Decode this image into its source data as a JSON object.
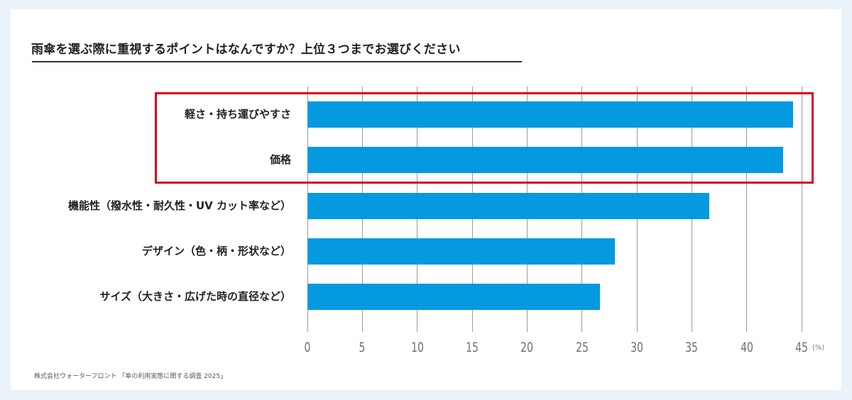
{
  "colors": {
    "background": "#eaf3fa",
    "card": "#ffffff",
    "bar": "#0599e0",
    "highlight": "#d7001e",
    "grid": "#9a9aa2",
    "axis_text": "#6e6e78"
  },
  "title": "雨傘を選ぶ際に重視するポイントはなんですか？上位３つまでお選びください",
  "source": "株式会社ウォーターフロント 「傘の利用実態に関する調査 2025」",
  "axis": {
    "unit": "(%)",
    "ticks": [
      "0",
      "5",
      "10",
      "15",
      "20",
      "25",
      "30",
      "35",
      "40",
      "45"
    ]
  },
  "highlight": {
    "label": "top-2 items highlighted",
    "covers": [
      "軽さ・持ち運びやすさ",
      "価格"
    ]
  },
  "chart_data": {
    "type": "bar",
    "orientation": "horizontal",
    "title": "雨傘を選ぶ際に重視するポイントはなんですか？上位３つまでお選びください",
    "categories": [
      "軽さ・持ち運びやすさ",
      "価格",
      "機能性（撥水性・耐久性・UV カット率など）",
      "デザイン（色・柄・形状など）",
      "サイズ（大きさ・広げた時の直径など）"
    ],
    "values": [
      44.2,
      43.3,
      36.6,
      28.0,
      26.6
    ],
    "xlabel": "(%)",
    "ylabel": "",
    "xlim": [
      0,
      45
    ],
    "xticks": [
      0,
      5,
      10,
      15,
      20,
      25,
      30,
      35,
      40,
      45
    ],
    "grid": "vertical",
    "legend": null,
    "annotations": [
      "Red box highlighting first two categories"
    ]
  }
}
